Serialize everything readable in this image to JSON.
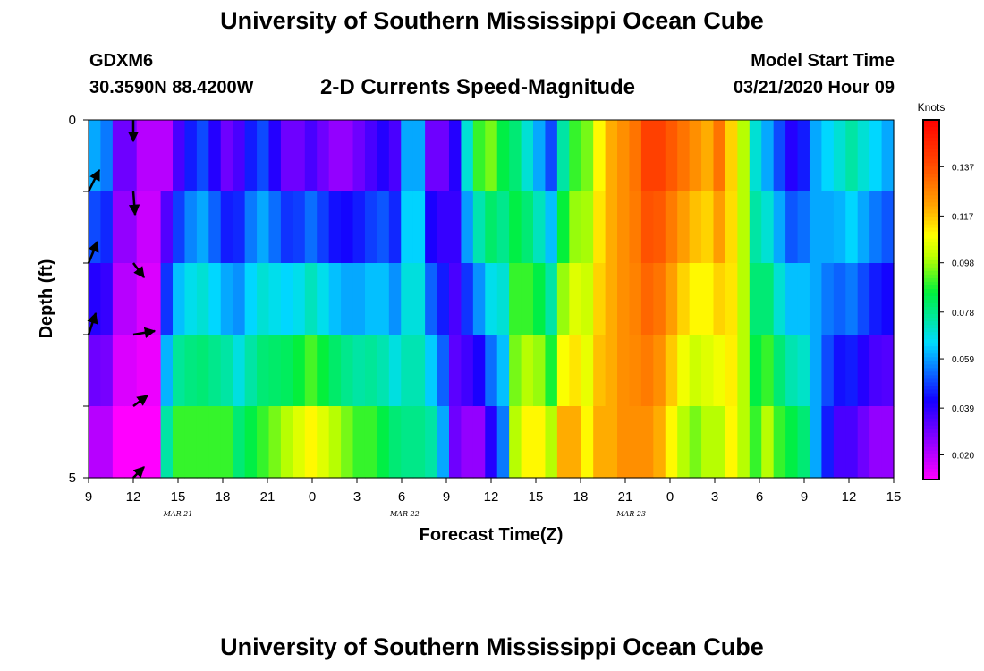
{
  "header": {
    "title": "University of Southern Mississippi Ocean Cube",
    "station": "GDXM6",
    "coords": "30.3590N 88.4200W",
    "subtitle": "2-D Currents Speed-Magnitude",
    "model_start_label": "Model Start Time",
    "model_start_value": "03/21/2020 Hour 09",
    "footer_title": "University of Southern Mississippi Ocean Cube"
  },
  "chart_data": {
    "type": "heatmap",
    "title": "2-D Currents Speed-Magnitude",
    "xlabel": "Forecast Time(Z)",
    "ylabel": "Depth (ft)",
    "x_tick_labels": [
      "9",
      "12",
      "15",
      "18",
      "21",
      "0",
      "3",
      "6",
      "9",
      "12",
      "15",
      "18",
      "21",
      "0",
      "3",
      "6",
      "9",
      "12",
      "15"
    ],
    "date_labels": [
      {
        "label": "MAR 21",
        "hour_index": 7.5
      },
      {
        "label": "MAR 22",
        "hour_index": 26.5
      },
      {
        "label": "MAR 23",
        "hour_index": 45.5
      }
    ],
    "y_tick_labels": [
      {
        "label": "0",
        "depth": 0
      },
      {
        "label": "5",
        "depth": 5
      }
    ],
    "y_minor_ticks": [
      1,
      2,
      3,
      4
    ],
    "ylim": [
      0,
      5
    ],
    "colorbar": {
      "unit": "Knots",
      "min": 0.01,
      "max": 0.156,
      "tick_labels": [
        "0.137",
        "0.117",
        "0.098",
        "0.078",
        "0.059",
        "0.039",
        "0.020"
      ],
      "tick_values": [
        0.137,
        0.117,
        0.098,
        0.078,
        0.059,
        0.039,
        0.02
      ]
    },
    "speed_profile_surface": [
      0.06,
      0.055,
      0.03,
      0.03,
      0.02,
      0.02,
      0.02,
      0.035,
      0.045,
      0.05,
      0.04,
      0.03,
      0.035,
      0.045,
      0.05,
      0.04,
      0.03,
      0.03,
      0.035,
      0.03,
      0.025,
      0.025,
      0.03,
      0.035,
      0.04,
      0.035,
      0.06,
      0.06,
      0.03,
      0.03,
      0.04,
      0.07,
      0.09,
      0.095,
      0.085,
      0.08,
      0.07,
      0.06,
      0.05,
      0.075,
      0.09,
      0.095,
      0.11,
      0.12,
      0.125,
      0.13,
      0.14,
      0.14,
      0.135,
      0.13,
      0.125,
      0.12,
      0.13,
      0.115,
      0.1,
      0.07,
      0.06,
      0.05,
      0.04,
      0.045,
      0.06,
      0.065,
      0.07,
      0.075,
      0.07,
      0.065,
      0.06
    ],
    "speed_profile_bottom": [
      0.02,
      0.02,
      0.01,
      0.01,
      0.01,
      0.01,
      0.075,
      0.09,
      0.09,
      0.09,
      0.09,
      0.09,
      0.08,
      0.085,
      0.09,
      0.095,
      0.1,
      0.105,
      0.11,
      0.105,
      0.1,
      0.095,
      0.09,
      0.09,
      0.085,
      0.08,
      0.078,
      0.078,
      0.075,
      0.06,
      0.03,
      0.025,
      0.025,
      0.04,
      0.055,
      0.1,
      0.11,
      0.11,
      0.1,
      0.12,
      0.12,
      0.11,
      0.12,
      0.12,
      0.125,
      0.125,
      0.125,
      0.12,
      0.11,
      0.1,
      0.095,
      0.1,
      0.1,
      0.11,
      0.1,
      0.09,
      0.1,
      0.09,
      0.085,
      0.08,
      0.06,
      0.045,
      0.035,
      0.035,
      0.03,
      0.025,
      0.025
    ],
    "current_vectors": [
      {
        "hour": 0,
        "depth": 1,
        "u": 0.06,
        "v": 0.12
      },
      {
        "hour": 0,
        "depth": 2,
        "u": 0.05,
        "v": 0.12
      },
      {
        "hour": 0,
        "depth": 3,
        "u": 0.04,
        "v": 0.12
      },
      {
        "hour": 3,
        "depth": 0,
        "u": 0.0,
        "v": -0.12
      },
      {
        "hour": 3,
        "depth": 1,
        "u": 0.01,
        "v": -0.13
      },
      {
        "hour": 3,
        "depth": 2,
        "u": 0.06,
        "v": -0.08
      },
      {
        "hour": 3,
        "depth": 3,
        "u": 0.12,
        "v": 0.02
      },
      {
        "hour": 3,
        "depth": 4,
        "u": 0.08,
        "v": 0.06
      },
      {
        "hour": 3,
        "depth": 5,
        "u": 0.06,
        "v": 0.06
      }
    ]
  }
}
